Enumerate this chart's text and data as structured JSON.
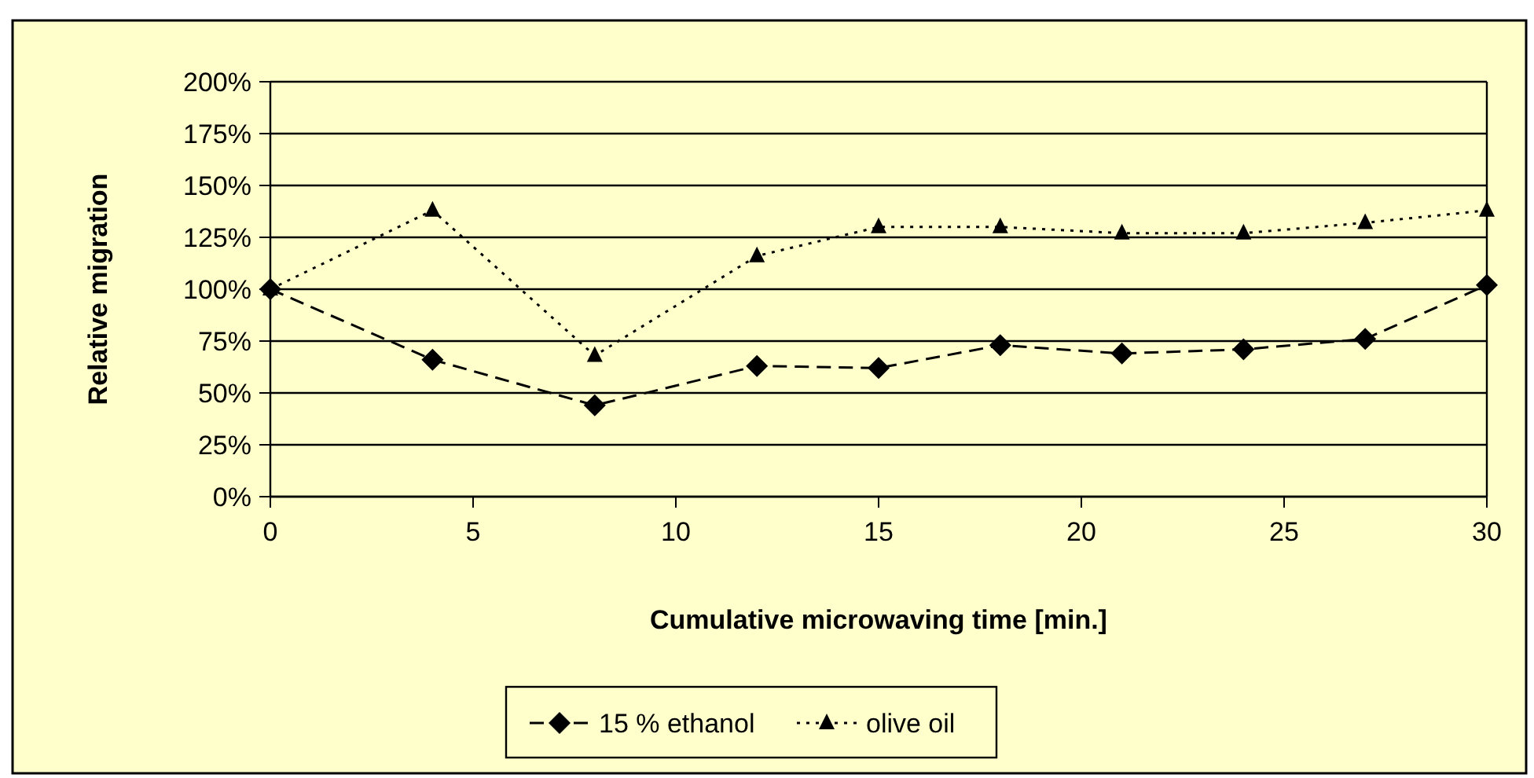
{
  "chart_data": {
    "type": "line",
    "xlabel": "Cumulative microwaving time [min.]",
    "ylabel": "Relative migration",
    "xlim": [
      0,
      30
    ],
    "xticks": [
      0,
      5,
      10,
      15,
      20,
      25,
      30
    ],
    "ylim": [
      0,
      200
    ],
    "yticks": [
      {
        "value": 0,
        "label": "0%"
      },
      {
        "value": 25,
        "label": "25%"
      },
      {
        "value": 50,
        "label": "50%"
      },
      {
        "value": 75,
        "label": "75%"
      },
      {
        "value": 100,
        "label": "100%"
      },
      {
        "value": 125,
        "label": "125%"
      },
      {
        "value": 150,
        "label": "150%"
      },
      {
        "value": 175,
        "label": "175%"
      },
      {
        "value": 200,
        "label": "200%"
      }
    ],
    "grid": "y",
    "legend": "bottom",
    "x": [
      0,
      4,
      8,
      12,
      15,
      18,
      21,
      24,
      27,
      30
    ],
    "series": [
      {
        "name": "15 % ethanol",
        "color": "#000000",
        "marker": "diamond",
        "line_style": "dashed",
        "values": [
          100,
          66,
          44,
          63,
          62,
          73,
          69,
          71,
          76,
          102
        ]
      },
      {
        "name": "olive oil",
        "color": "#000000",
        "marker": "triangle",
        "line_style": "dotted",
        "values": [
          100,
          138,
          68,
          116,
          130,
          130,
          127,
          127,
          132,
          138
        ]
      }
    ]
  }
}
